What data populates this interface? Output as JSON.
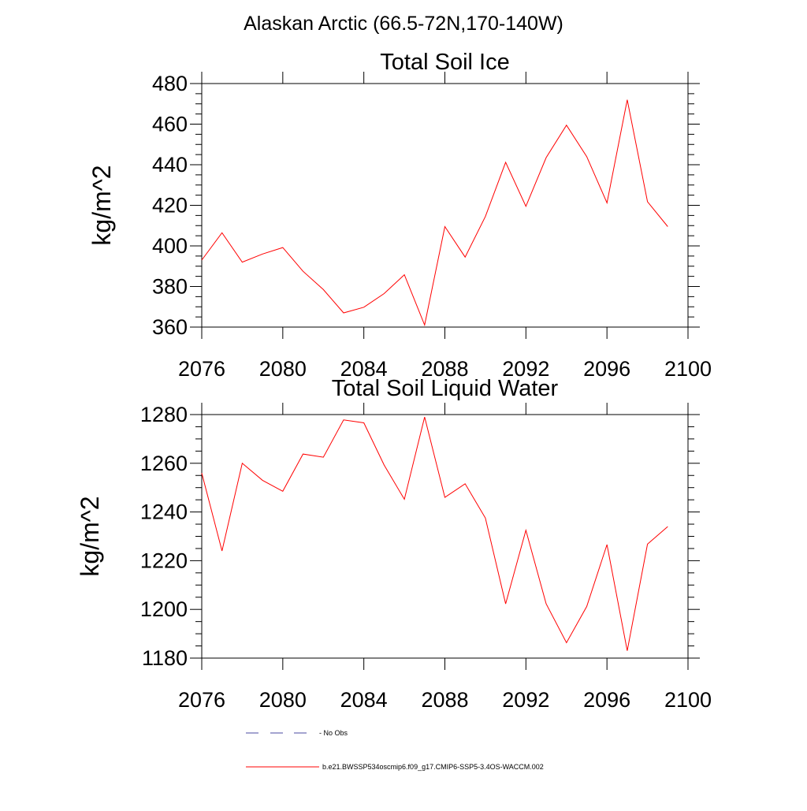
{
  "figure_title": "Alaskan Arctic (66.5-72N,170-140W)",
  "colors": {
    "model_line": "#ff0000",
    "obs_line": "#4a4aa0",
    "axis": "#000000"
  },
  "legend": {
    "obs_label": "No Obs",
    "model_label": "b.e21.BWSSP534oscmip6.f09_g17.CMIP6-SSP5-3.4OS-WACCM.002"
  },
  "chart_data": [
    {
      "type": "line",
      "title": "Total Soil Ice",
      "xlabel": "",
      "ylabel": "kg/m^2",
      "xlim": [
        2076,
        2100
      ],
      "ylim": [
        360,
        480
      ],
      "xticks": [
        2076,
        2080,
        2084,
        2088,
        2092,
        2096,
        2100
      ],
      "yticks": [
        360,
        380,
        400,
        420,
        440,
        460,
        480
      ],
      "yminor": 4,
      "series": [
        {
          "name": "b.e21.BWSSP534oscmip6.f09_g17.CMIP6-SSP5-3.4OS-WACCM.002",
          "x": [
            2076,
            2077,
            2078,
            2079,
            2080,
            2081,
            2082,
            2083,
            2084,
            2085,
            2086,
            2087,
            2088,
            2089,
            2090,
            2091,
            2092,
            2093,
            2094,
            2095,
            2096,
            2097,
            2098,
            2099
          ],
          "y": [
            393,
            406.5,
            392,
            396,
            399.2,
            387.5,
            378.5,
            367,
            369.8,
            376.5,
            385.8,
            361,
            409.5,
            394.5,
            414.5,
            441.2,
            419.5,
            443.5,
            459.5,
            444,
            421.2,
            472,
            421.8,
            409.5
          ]
        }
      ]
    },
    {
      "type": "line",
      "title": "Total Soil Liquid Water",
      "xlabel": "",
      "ylabel": "kg/m^2",
      "xlim": [
        2076,
        2100
      ],
      "ylim": [
        1180,
        1280
      ],
      "xticks": [
        2076,
        2080,
        2084,
        2088,
        2092,
        2096,
        2100
      ],
      "yticks": [
        1180,
        1200,
        1220,
        1240,
        1260,
        1280
      ],
      "yminor": 4,
      "series": [
        {
          "name": "b.e21.BWSSP534oscmip6.f09_g17.CMIP6-SSP5-3.4OS-WACCM.002",
          "x": [
            2076,
            2077,
            2078,
            2079,
            2080,
            2081,
            2082,
            2083,
            2084,
            2085,
            2086,
            2087,
            2088,
            2089,
            2090,
            2091,
            2092,
            2093,
            2094,
            2095,
            2096,
            2097,
            2098,
            2099
          ],
          "y": [
            1256,
            1224,
            1260,
            1253,
            1248.5,
            1263.8,
            1262.5,
            1277.8,
            1276.6,
            1259.3,
            1245.2,
            1279,
            1246,
            1251.6,
            1237.5,
            1202.3,
            1232.5,
            1202.3,
            1186.3,
            1201.2,
            1226.6,
            1183,
            1226.8,
            1234
          ]
        }
      ]
    }
  ]
}
